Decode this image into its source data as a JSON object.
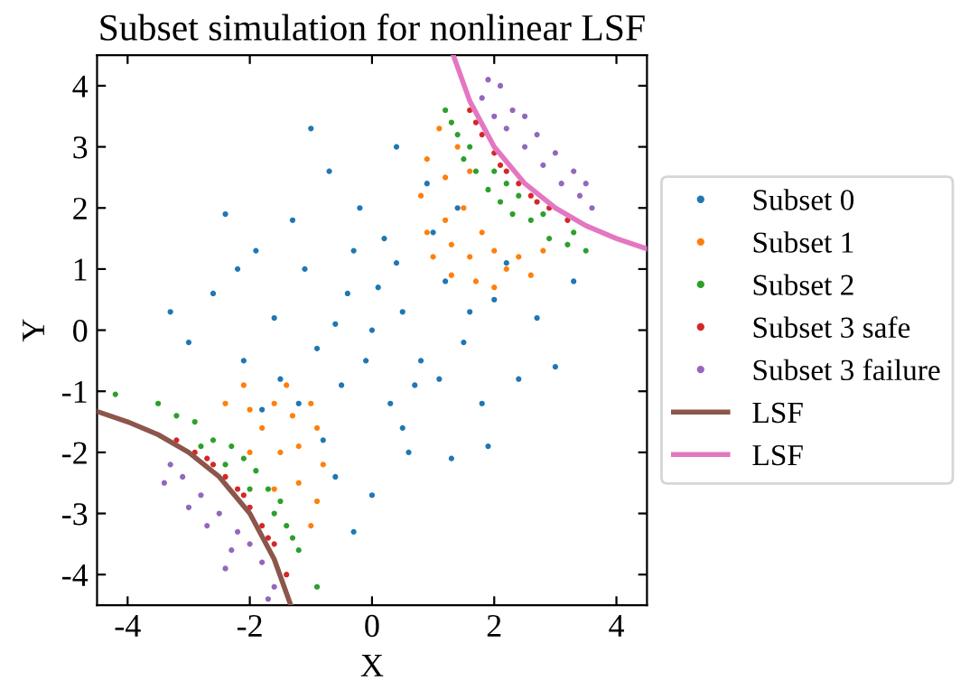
{
  "chart_data": {
    "type": "scatter",
    "title": "Subset simulation for nonlinear LSF",
    "xlabel": "X",
    "ylabel": "Y",
    "xlim": [
      -4.5,
      4.5
    ],
    "ylim": [
      -4.5,
      4.5
    ],
    "xticks": [
      -4,
      -2,
      0,
      2,
      4
    ],
    "yticks": [
      -4,
      -3,
      -2,
      -1,
      0,
      1,
      2,
      3,
      4
    ],
    "grid": false,
    "legend": "right",
    "marker": "circle",
    "series": [
      {
        "name": "Subset 0",
        "color": "#1f77b4",
        "x": [
          0,
          0.5,
          -0.4,
          0.8,
          -0.9,
          1.2,
          -1.1,
          0.3,
          -0.5,
          1.5,
          -1.6,
          0.2,
          -0.2,
          2.0,
          -2.1,
          0.6,
          -0.8,
          1.0,
          -1.3,
          1.8,
          -1.9,
          0.9,
          -0.7,
          2.4,
          -2.6,
          0.0,
          1.3,
          -1.0,
          2.7,
          -3.0,
          0.4,
          -2.4,
          3.0,
          1.9,
          -0.3,
          -3.3,
          1.6,
          -0.6,
          0.1,
          0.7,
          -1.2,
          1.1,
          -0.1,
          0.4,
          -1.5,
          2.2,
          -2.2,
          0.5,
          -0.3,
          1.4,
          -1.8,
          3.3,
          -0.6
        ],
        "values": [
          0,
          0.3,
          0.6,
          -0.5,
          -0.3,
          0.8,
          1.0,
          -1.2,
          -0.9,
          -0.2,
          0.2,
          1.5,
          2.0,
          0.5,
          -0.5,
          -2.0,
          -1.8,
          1.6,
          1.8,
          -1.2,
          1.3,
          2.4,
          2.6,
          -0.8,
          0.6,
          -2.7,
          -2.1,
          3.3,
          0.2,
          -0.2,
          3.0,
          1.9,
          -0.6,
          -1.9,
          -3.3,
          0.3,
          0.3,
          0.1,
          0.7,
          -0.9,
          -1.2,
          -0.8,
          -0.5,
          1.1,
          -0.8,
          1.1,
          1.0,
          -1.6,
          1.3,
          2.0,
          -1.3,
          0.8,
          -2.4
        ]
      },
      {
        "name": "Subset 1",
        "color": "#ff7f0e",
        "x": [
          0.8,
          0.9,
          1.0,
          1.2,
          1.3,
          1.3,
          1.5,
          1.6,
          1.7,
          1.8,
          2.0,
          2.0,
          2.2,
          2.4,
          2.6,
          1.1,
          1.4,
          0.9,
          1.6,
          2.8,
          1.2,
          -0.8,
          -0.9,
          -1.0,
          -1.2,
          -1.3,
          -1.4,
          -1.5,
          -1.6,
          -1.8,
          -2.0,
          -2.1,
          -0.9,
          -1.6,
          -1.0,
          -2.4,
          -1.2,
          -2.0
        ],
        "values": [
          2.2,
          1.6,
          1.2,
          2.5,
          1.4,
          0.9,
          2.0,
          1.2,
          0.8,
          1.6,
          1.3,
          0.7,
          1.0,
          1.2,
          0.9,
          3.3,
          3.0,
          2.8,
          2.6,
          1.3,
          1.8,
          -2.2,
          -1.6,
          -1.2,
          -2.5,
          -1.4,
          -0.9,
          -2.0,
          -1.2,
          -1.6,
          -1.3,
          -0.9,
          -2.8,
          -2.6,
          -3.2,
          -1.2,
          -1.9,
          -2.0
        ]
      },
      {
        "name": "Subset 2",
        "color": "#2ca02c",
        "x": [
          1.2,
          1.4,
          1.5,
          1.7,
          1.9,
          2.1,
          2.3,
          2.6,
          2.9,
          3.2,
          3.5,
          1.6,
          2.0,
          2.4,
          2.8,
          3.3,
          1.3,
          2.2,
          -1.2,
          -1.4,
          -1.5,
          -1.7,
          -1.9,
          -2.1,
          -2.3,
          -2.6,
          -2.9,
          -3.2,
          -3.5,
          -4.2,
          -2.0,
          -2.4,
          -2.8,
          -1.3,
          -0.9,
          -1.6
        ],
        "values": [
          3.6,
          3.2,
          2.8,
          2.6,
          2.3,
          2.1,
          1.9,
          1.8,
          1.5,
          1.4,
          1.3,
          3.0,
          2.6,
          2.2,
          1.9,
          1.6,
          3.4,
          2.4,
          -3.6,
          -3.2,
          -2.8,
          -2.6,
          -2.3,
          -2.1,
          -1.9,
          -1.8,
          -1.5,
          -1.4,
          -1.2,
          -1.05,
          -2.6,
          -2.2,
          -1.9,
          -3.4,
          -4.2,
          -3.0
        ]
      },
      {
        "name": "Subset 3 safe",
        "color": "#d62728",
        "x": [
          1.6,
          1.8,
          2.0,
          2.2,
          2.4,
          2.6,
          2.9,
          3.2,
          1.7,
          2.1,
          2.7,
          -1.6,
          -1.8,
          -2.0,
          -2.2,
          -2.4,
          -2.6,
          -2.9,
          -3.2,
          -1.7,
          -2.1,
          -2.7,
          -1.4
        ],
        "values": [
          3.6,
          3.2,
          2.9,
          2.6,
          2.4,
          2.2,
          2.0,
          1.8,
          3.4,
          2.7,
          2.1,
          -3.5,
          -3.2,
          -2.9,
          -2.6,
          -2.4,
          -2.2,
          -2.0,
          -1.8,
          -3.4,
          -2.7,
          -2.1,
          -4.0
        ]
      },
      {
        "name": "Subset 3 failure",
        "color": "#9467bd",
        "x": [
          1.8,
          2.0,
          2.2,
          2.5,
          2.8,
          3.1,
          3.4,
          3.6,
          2.3,
          2.7,
          3.0,
          3.3,
          2.1,
          2.5,
          3.5,
          1.9,
          -1.8,
          -2.0,
          -2.2,
          -2.5,
          -2.8,
          -3.1,
          -3.3,
          -2.3,
          -2.7,
          -3.0,
          -1.6,
          -2.4,
          -3.4,
          -1.7
        ],
        "values": [
          3.8,
          3.5,
          3.3,
          3.0,
          2.7,
          2.4,
          2.2,
          2.0,
          3.6,
          3.2,
          2.9,
          2.6,
          4.0,
          3.5,
          2.4,
          4.1,
          -3.8,
          -3.5,
          -3.3,
          -3.0,
          -2.7,
          -2.4,
          -2.2,
          -3.6,
          -3.2,
          -2.9,
          -4.2,
          -3.9,
          -2.5,
          -4.4
        ]
      },
      {
        "name": "LSF",
        "type": "line",
        "marker": "none",
        "color": "#8c564b",
        "x": [
          -4.5,
          -4,
          -3.5,
          -3,
          -2.5,
          -2,
          -1.6,
          -1.33
        ],
        "values": [
          -1.33,
          -1.5,
          -1.71,
          -2,
          -2.4,
          -3,
          -3.75,
          -4.5
        ]
      },
      {
        "name": "LSF",
        "type": "line",
        "marker": "none",
        "color": "#e377c2",
        "x": [
          1.33,
          1.6,
          2,
          2.5,
          3,
          3.5,
          4,
          4.5
        ],
        "values": [
          4.5,
          3.75,
          3,
          2.4,
          2,
          1.71,
          1.5,
          1.33
        ]
      }
    ]
  }
}
